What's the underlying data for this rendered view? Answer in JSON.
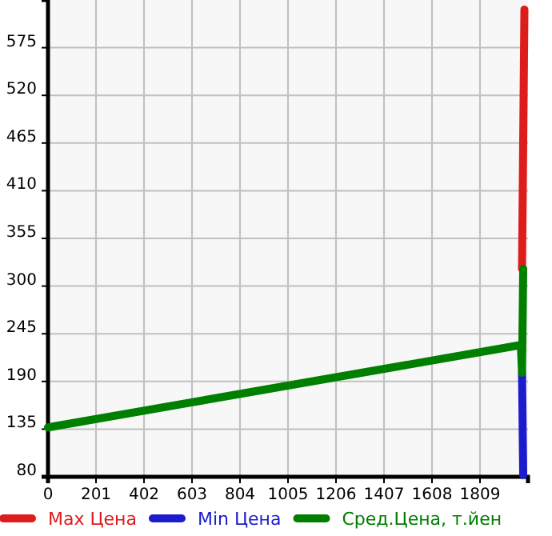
{
  "chart_data": {
    "type": "line",
    "xlim": [
      0,
      2010
    ],
    "ylim": [
      80,
      630
    ],
    "xticks": [
      0,
      201,
      402,
      603,
      804,
      1005,
      1206,
      1407,
      1608,
      1809
    ],
    "yticks": [
      80,
      135,
      190,
      245,
      300,
      355,
      410,
      465,
      520,
      575
    ],
    "grid": true,
    "legend": "bottom",
    "marker": "none",
    "line_style": "solid",
    "series": [
      {
        "name": "Max Цена",
        "color": "#dd1c1c",
        "x": [
          1995,
          1985
        ],
        "values": [
          619,
          320
        ]
      },
      {
        "name": "Min Цена",
        "color": "#1c1ccc",
        "x": [
          1985,
          1990
        ],
        "values": [
          200,
          82
        ]
      },
      {
        "name": "Сред.Цена, т.йен",
        "color": "#007f00",
        "x": [
          0,
          1980,
          1985,
          1990
        ],
        "values": [
          137,
          232,
          200,
          320
        ]
      }
    ]
  }
}
